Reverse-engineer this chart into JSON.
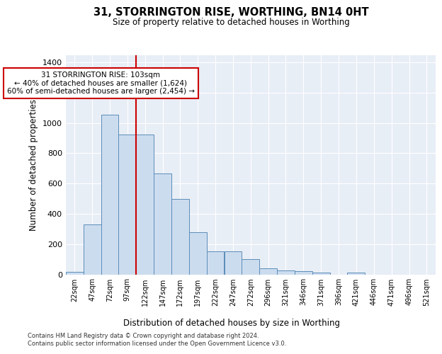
{
  "title1": "31, STORRINGTON RISE, WORTHING, BN14 0HT",
  "title2": "Size of property relative to detached houses in Worthing",
  "xlabel": "Distribution of detached houses by size in Worthing",
  "ylabel": "Number of detached properties",
  "bin_labels": [
    "22sqm",
    "47sqm",
    "72sqm",
    "97sqm",
    "122sqm",
    "147sqm",
    "172sqm",
    "197sqm",
    "222sqm",
    "247sqm",
    "272sqm",
    "296sqm",
    "321sqm",
    "346sqm",
    "371sqm",
    "396sqm",
    "421sqm",
    "446sqm",
    "471sqm",
    "496sqm",
    "521sqm"
  ],
  "bar_values": [
    18,
    330,
    1055,
    925,
    925,
    665,
    500,
    280,
    150,
    150,
    100,
    38,
    25,
    22,
    14,
    0,
    12,
    0,
    0,
    0,
    0
  ],
  "bar_color": "#ccdcef",
  "bar_edge_color": "#5b8db8",
  "red_line_color": "#cc0000",
  "red_line_x": 3.5,
  "annotation_text": "31 STORRINGTON RISE: 103sqm\n← 40% of detached houses are smaller (1,624)\n60% of semi-detached houses are larger (2,454) →",
  "annotation_box_color": "#cc0000",
  "ylim": [
    0,
    1450
  ],
  "yticks": [
    0,
    200,
    400,
    600,
    800,
    1000,
    1200,
    1400
  ],
  "bg_color": "#e8eef6",
  "grid_color": "#ffffff",
  "footnote1": "Contains HM Land Registry data © Crown copyright and database right 2024.",
  "footnote2": "Contains public sector information licensed under the Open Government Licence v3.0."
}
